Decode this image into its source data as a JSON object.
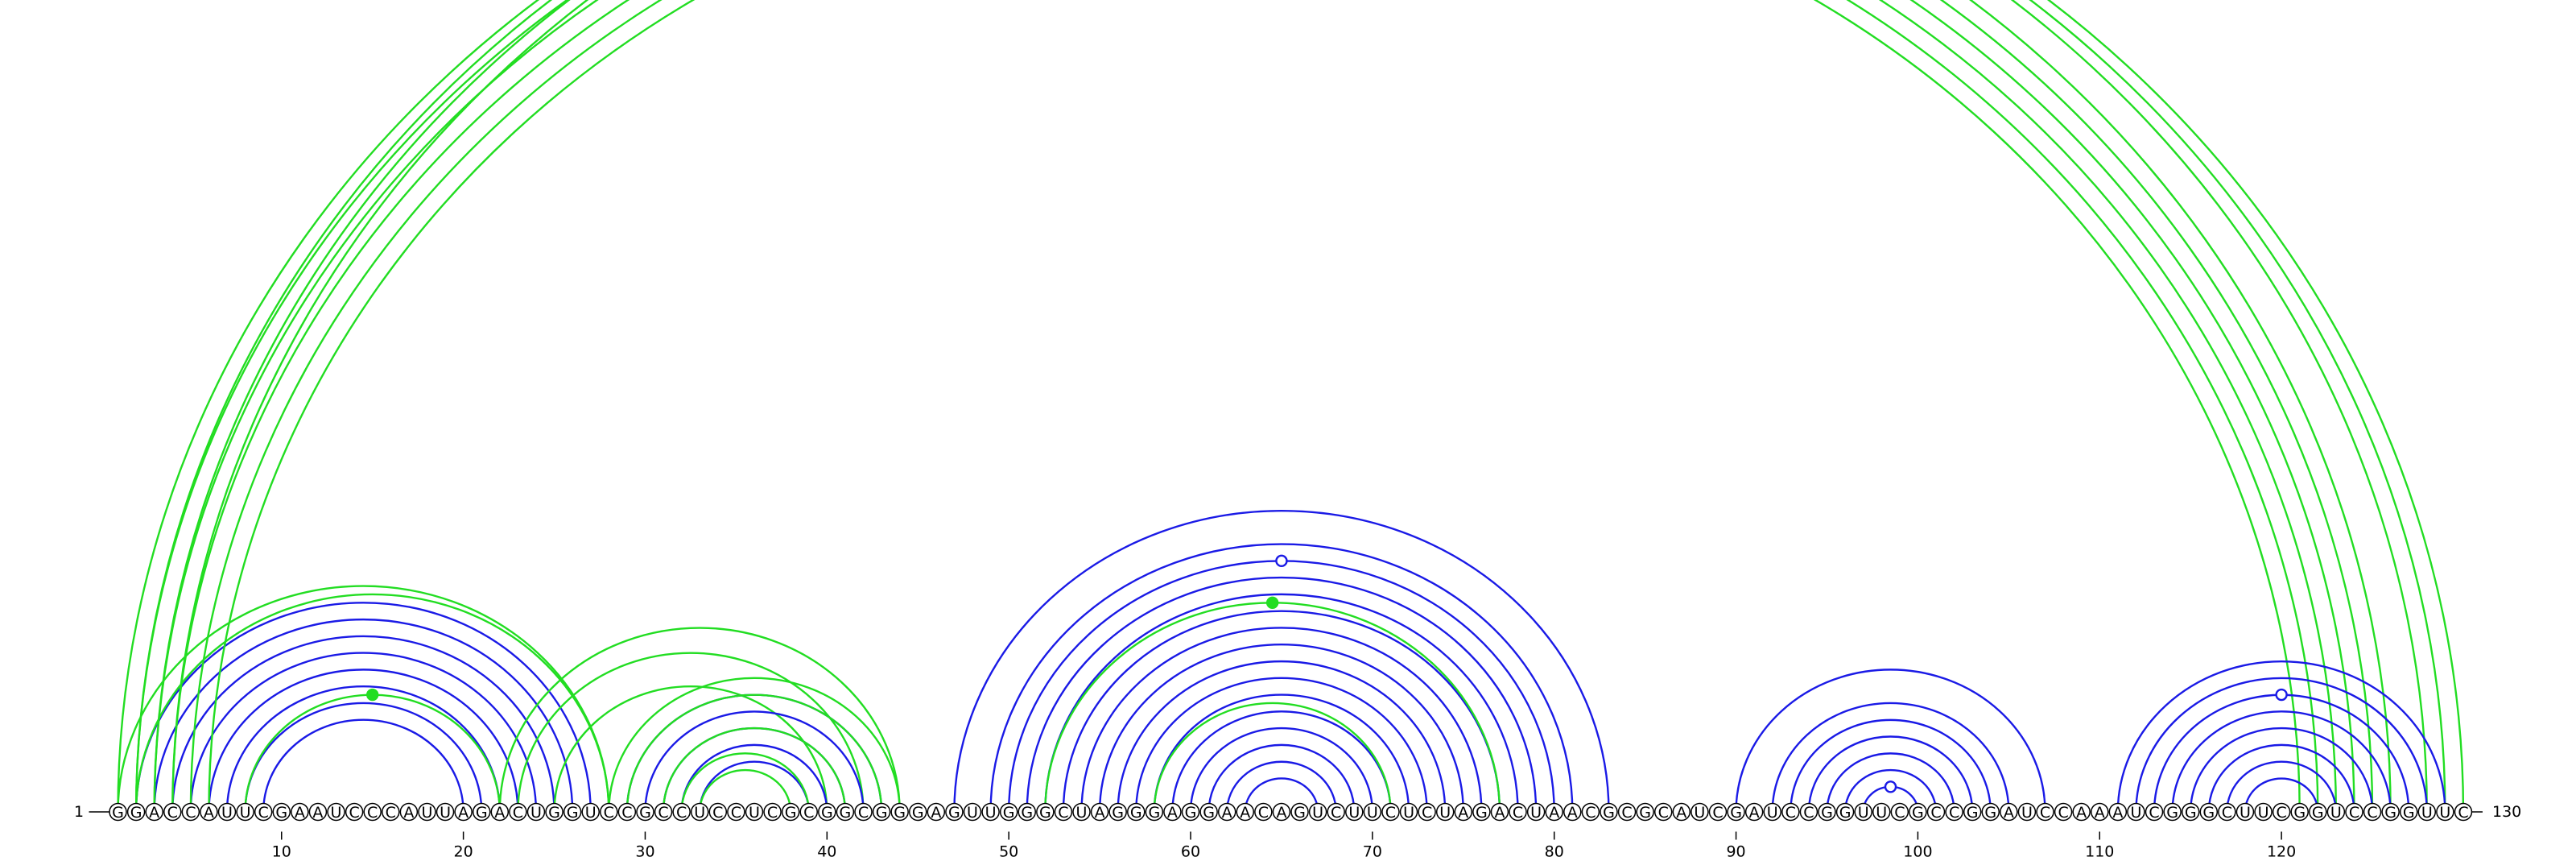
{
  "sequence": "GGACCAUUCGAAUCCCAUUAGACUGGUCCGCCUCCUCGCGGCGGGAGUUGGGCUAGGGAGGAACAGUCUUCUCUAGACUAACGCGCAUCGAUCCGGUUCGCCGGAUCCAAAUCGGGCUUCGGUCCGGUUC",
  "start_label": "1",
  "end_label": "130",
  "ticks": [
    10,
    20,
    30,
    40,
    50,
    60,
    70,
    80,
    90,
    100,
    110,
    120
  ],
  "colors": {
    "blue": "#1a1ae6",
    "green": "#22dd22"
  },
  "arc_groups": [
    {
      "color": "blue",
      "pairs": [
        [
          2,
          27
        ],
        [
          3,
          26
        ],
        [
          4,
          25
        ],
        [
          5,
          24
        ],
        [
          6,
          23
        ],
        [
          7,
          22
        ],
        [
          8,
          21
        ],
        [
          9,
          20
        ]
      ]
    },
    {
      "color": "green",
      "pairs": [
        [
          1,
          28
        ],
        [
          2,
          28
        ],
        [
          8,
          22
        ]
      ],
      "marker": {
        "at": [
          8,
          22
        ],
        "style": "filled"
      }
    },
    {
      "color": "green",
      "pairs": [
        [
          1,
          126
        ],
        [
          2,
          125
        ],
        [
          3,
          124
        ],
        [
          4,
          123
        ],
        [
          5,
          122
        ],
        [
          6,
          121
        ],
        [
          2,
          128
        ],
        [
          3,
          129
        ],
        [
          4,
          130
        ]
      ],
      "marker": {
        "at": [
          2,
          128
        ],
        "style": "open"
      }
    },
    {
      "color": "green",
      "pairs": [
        [
          22,
          44
        ],
        [
          23,
          42
        ],
        [
          25,
          40
        ]
      ]
    },
    {
      "color": "blue",
      "pairs": [
        [
          29,
          43
        ],
        [
          30,
          42
        ],
        [
          31,
          41
        ],
        [
          32,
          40
        ],
        [
          33,
          39
        ]
      ]
    },
    {
      "color": "green",
      "pairs": [
        [
          28,
          44
        ],
        [
          29,
          43
        ],
        [
          31,
          41
        ],
        [
          32,
          39
        ],
        [
          33,
          38
        ]
      ]
    },
    {
      "color": "blue",
      "pairs": [
        [
          47,
          83
        ],
        [
          49,
          81
        ],
        [
          50,
          80
        ],
        [
          51,
          79
        ],
        [
          52,
          78
        ],
        [
          53,
          77
        ],
        [
          54,
          76
        ],
        [
          55,
          75
        ],
        [
          56,
          74
        ],
        [
          57,
          73
        ],
        [
          58,
          72
        ],
        [
          59,
          71
        ],
        [
          60,
          70
        ],
        [
          61,
          69
        ],
        [
          62,
          68
        ],
        [
          63,
          67
        ]
      ],
      "marker": {
        "at": [
          50,
          80
        ],
        "style": "open"
      }
    },
    {
      "color": "green",
      "pairs": [
        [
          52,
          77
        ],
        [
          58,
          71
        ]
      ],
      "marker": {
        "at": [
          52,
          77
        ],
        "style": "filled"
      }
    },
    {
      "color": "blue",
      "pairs": [
        [
          90,
          107
        ],
        [
          92,
          105
        ],
        [
          93,
          104
        ],
        [
          94,
          103
        ],
        [
          95,
          102
        ],
        [
          96,
          101
        ],
        [
          97,
          100
        ]
      ],
      "marker": {
        "at": [
          97,
          100
        ],
        "style": "open"
      }
    },
    {
      "color": "blue",
      "pairs": [
        [
          111,
          129
        ],
        [
          112,
          128
        ],
        [
          113,
          127
        ],
        [
          114,
          126
        ],
        [
          115,
          125
        ],
        [
          116,
          124
        ],
        [
          117,
          123
        ],
        [
          118,
          122
        ]
      ],
      "marker": {
        "at": [
          113,
          127
        ],
        "style": "open"
      }
    }
  ]
}
